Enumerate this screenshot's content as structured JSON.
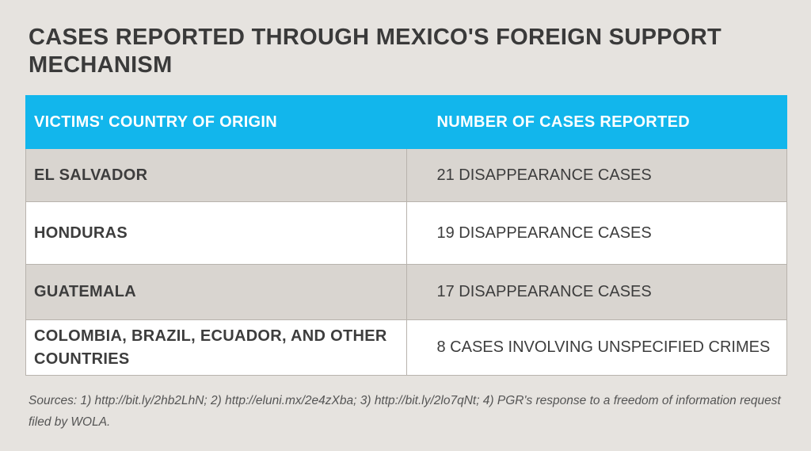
{
  "chart_data": {
    "type": "table",
    "title": "CASES REPORTED THROUGH MEXICO'S FOREIGN SUPPORT MECHANISM",
    "columns": [
      "VICTIMS' COUNTRY OF ORIGIN",
      "NUMBER OF CASES REPORTED"
    ],
    "rows": [
      {
        "country": "EL SALVADOR",
        "cases": "21 DISAPPEARANCE CASES"
      },
      {
        "country": "HONDURAS",
        "cases": "19 DISAPPEARANCE CASES"
      },
      {
        "country": "GUATEMALA",
        "cases": "17 DISAPPEARANCE CASES"
      },
      {
        "country": "COLOMBIA, BRAZIL, ECUADOR, AND OTHER COUNTRIES",
        "cases": "8 CASES INVOLVING UNSPECIFIED CRIMES"
      }
    ],
    "sources": "Sources: 1) http://bit.ly/2hb2LhN;  2) http://eluni.mx/2e4zXba;  3) http://bit.ly/2lo7qNt;  4) PGR's response to a freedom of information request filed by WOLA."
  },
  "colors": {
    "header_bg": "#12b6ec",
    "row_gray": "#d9d5d0",
    "row_white": "#ffffff",
    "page_bg": "#e6e3df"
  }
}
